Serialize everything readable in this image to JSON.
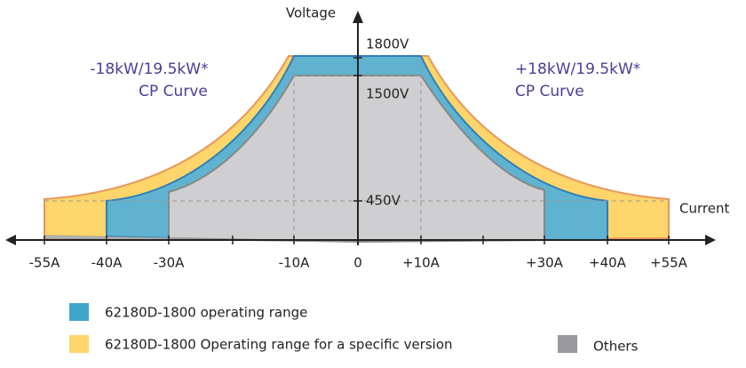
{
  "axes": {
    "y_label": "Voltage",
    "x_label": "Current"
  },
  "voltage_ticks": [
    "1800V",
    "1500V",
    "450V"
  ],
  "current_ticks": [
    "-55A",
    "-40A",
    "-30A",
    "-10A",
    "0",
    "+10A",
    "+30A",
    "+40A",
    "+55A"
  ],
  "annotations": {
    "left": [
      "-18kW/19.5kW*",
      "CP Curve"
    ],
    "right": [
      "+18kW/19.5kW*",
      "CP Curve"
    ]
  },
  "legend": [
    "62180D-1800 operating range",
    "62180D-1800 Operating range for a specific version",
    "Others"
  ]
}
